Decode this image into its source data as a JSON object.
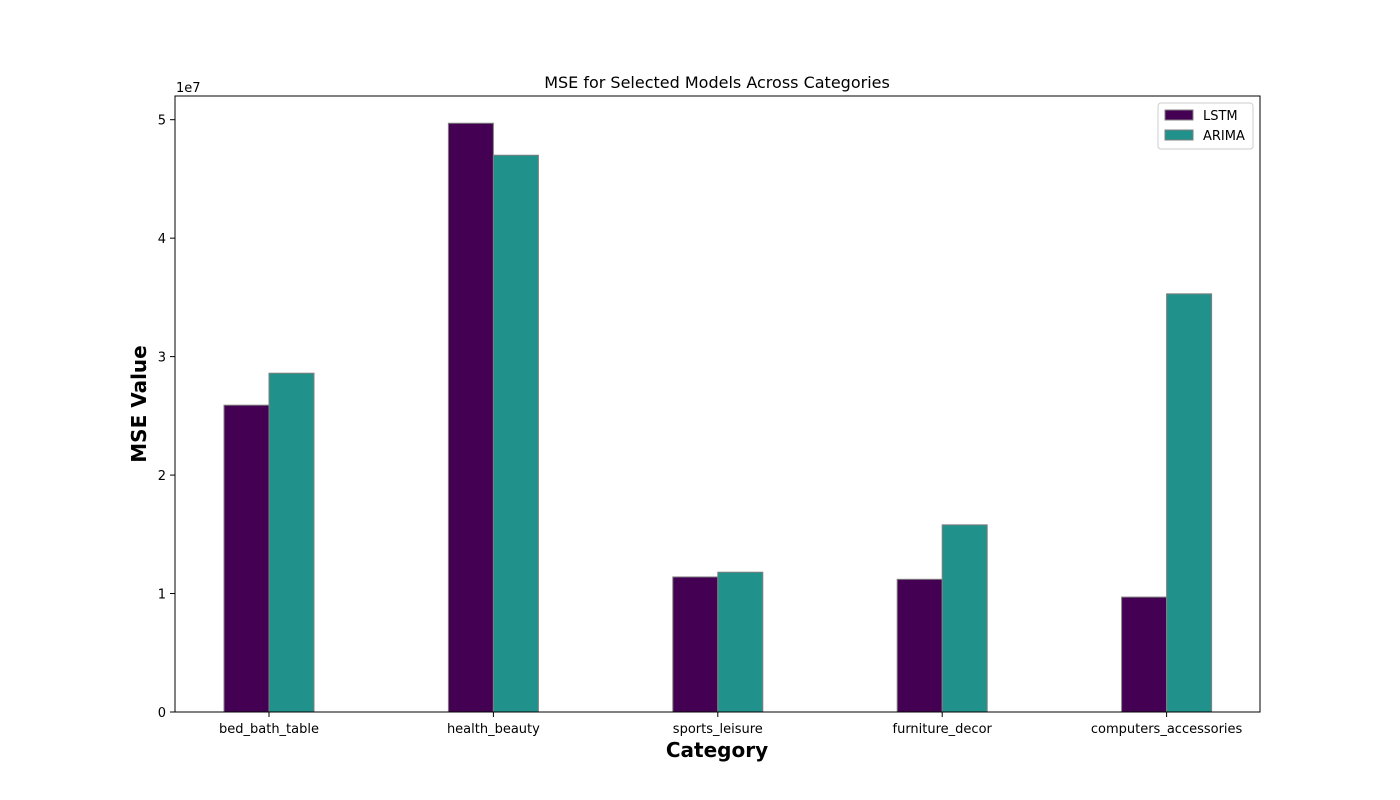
{
  "chart_data": {
    "type": "bar",
    "title": "MSE for Selected Models Across Categories",
    "xlabel": "Category",
    "ylabel": "MSE Value",
    "y_offset_label": "1e7",
    "y_scale": 10000000,
    "ylim": [
      0,
      52000000
    ],
    "yticks": [
      0,
      10000000,
      20000000,
      30000000,
      40000000,
      50000000
    ],
    "ytick_labels": [
      "0",
      "1",
      "2",
      "3",
      "4",
      "5"
    ],
    "categories": [
      "bed_bath_table",
      "health_beauty",
      "sports_leisure",
      "furniture_decor",
      "computers_accessories"
    ],
    "series": [
      {
        "name": "LSTM",
        "color": "#440154",
        "values": [
          25900000,
          49700000,
          11400000,
          11200000,
          9700000
        ]
      },
      {
        "name": "ARIMA",
        "color": "#21918c",
        "values": [
          28600000,
          47000000,
          11800000,
          15800000,
          35300000
        ]
      }
    ],
    "bar_edge_color": "#808080",
    "legend_position": "upper right",
    "grid": false
  }
}
